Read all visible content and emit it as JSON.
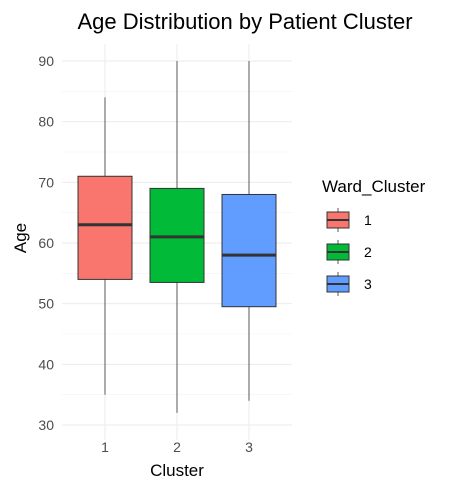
{
  "chart_data": {
    "type": "boxplot",
    "title": "Age Distribution by Patient Cluster",
    "xlabel": "Cluster",
    "ylabel": "Age",
    "categories": [
      "1",
      "2",
      "3"
    ],
    "ylim": [
      30,
      90
    ],
    "yticks": [
      30,
      40,
      50,
      60,
      70,
      80,
      90
    ],
    "grid": true,
    "legend": {
      "title": "Ward_Cluster",
      "position": "right",
      "entries": [
        "1",
        "2",
        "3"
      ]
    },
    "colors": [
      "#F8766D",
      "#00BA38",
      "#619CFF"
    ],
    "series": [
      {
        "category": "1",
        "min": 35,
        "q1": 54,
        "median": 63,
        "q3": 71,
        "max": 84
      },
      {
        "category": "2",
        "min": 32,
        "q1": 53.5,
        "median": 61,
        "q3": 69,
        "max": 90
      },
      {
        "category": "3",
        "min": 34,
        "q1": 49.5,
        "median": 58,
        "q3": 68,
        "max": 90
      }
    ]
  }
}
